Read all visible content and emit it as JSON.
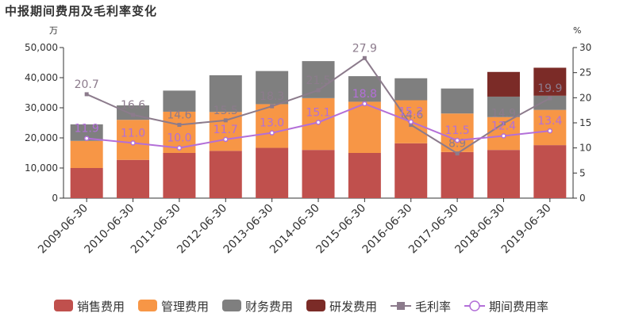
{
  "chart_data": {
    "type": "bar",
    "title": "中报期间费用及毛利率变化",
    "left_unit": "万",
    "right_unit": "%",
    "categories": [
      "2009-06-30",
      "2010-06-30",
      "2011-06-30",
      "2012-06-30",
      "2013-06-30",
      "2014-06-30",
      "2015-06-30",
      "2016-06-30",
      "2017-06-30",
      "2018-06-30",
      "2019-06-30"
    ],
    "ylim_left": [
      0,
      50000
    ],
    "ylim_right": [
      0,
      30
    ],
    "yticks_left": [
      "0",
      "10,000",
      "20,000",
      "30,000",
      "40,000",
      "50,000"
    ],
    "yticks_right": [
      "0",
      "5",
      "10",
      "15",
      "20",
      "25",
      "30"
    ],
    "bar_series": [
      {
        "name": "销售费用",
        "color": "#c0504d",
        "values": [
          10000,
          12700,
          15000,
          15700,
          16700,
          16000,
          15000,
          18200,
          15300,
          16000,
          17600
        ]
      },
      {
        "name": "管理费用",
        "color": "#f79646",
        "values": [
          9000,
          13300,
          13700,
          12900,
          14500,
          17200,
          17000,
          14300,
          12800,
          10900,
          11700
        ]
      },
      {
        "name": "财务费用",
        "color": "#7f7f7f",
        "values": [
          5500,
          4800,
          7000,
          12200,
          11000,
          12300,
          8500,
          7300,
          8300,
          6800,
          4700
        ]
      },
      {
        "name": "研发费用",
        "color": "#7b2b27",
        "values": [
          0,
          0,
          0,
          0,
          0,
          0,
          0,
          0,
          0,
          8200,
          9300
        ]
      }
    ],
    "line_series": [
      {
        "name": "毛利率",
        "color": "#8c7b8c",
        "marker": "square",
        "values": [
          20.7,
          16.6,
          14.6,
          15.5,
          18.3,
          21.5,
          27.9,
          14.6,
          8.9,
          14.9,
          19.9
        ],
        "labels": [
          "20.7",
          "16.6",
          "14.6",
          "15.5",
          "18.3",
          "21.5",
          "27.9",
          "14.6",
          "8.9",
          "14.9",
          "19.9"
        ]
      },
      {
        "name": "期间费用率",
        "color": "#b36fd8",
        "marker": "circle",
        "values": [
          11.9,
          11.0,
          10.0,
          11.7,
          13.0,
          15.1,
          18.8,
          15.2,
          11.5,
          12.4,
          13.4
        ],
        "labels": [
          "11.9",
          "11.0",
          "10.0",
          "11.7",
          "13.0",
          "15.1",
          "18.8",
          "15.2",
          "11.5",
          "12.4",
          "13.4"
        ]
      }
    ],
    "legend": {
      "position": "bottom"
    },
    "grid": false
  }
}
